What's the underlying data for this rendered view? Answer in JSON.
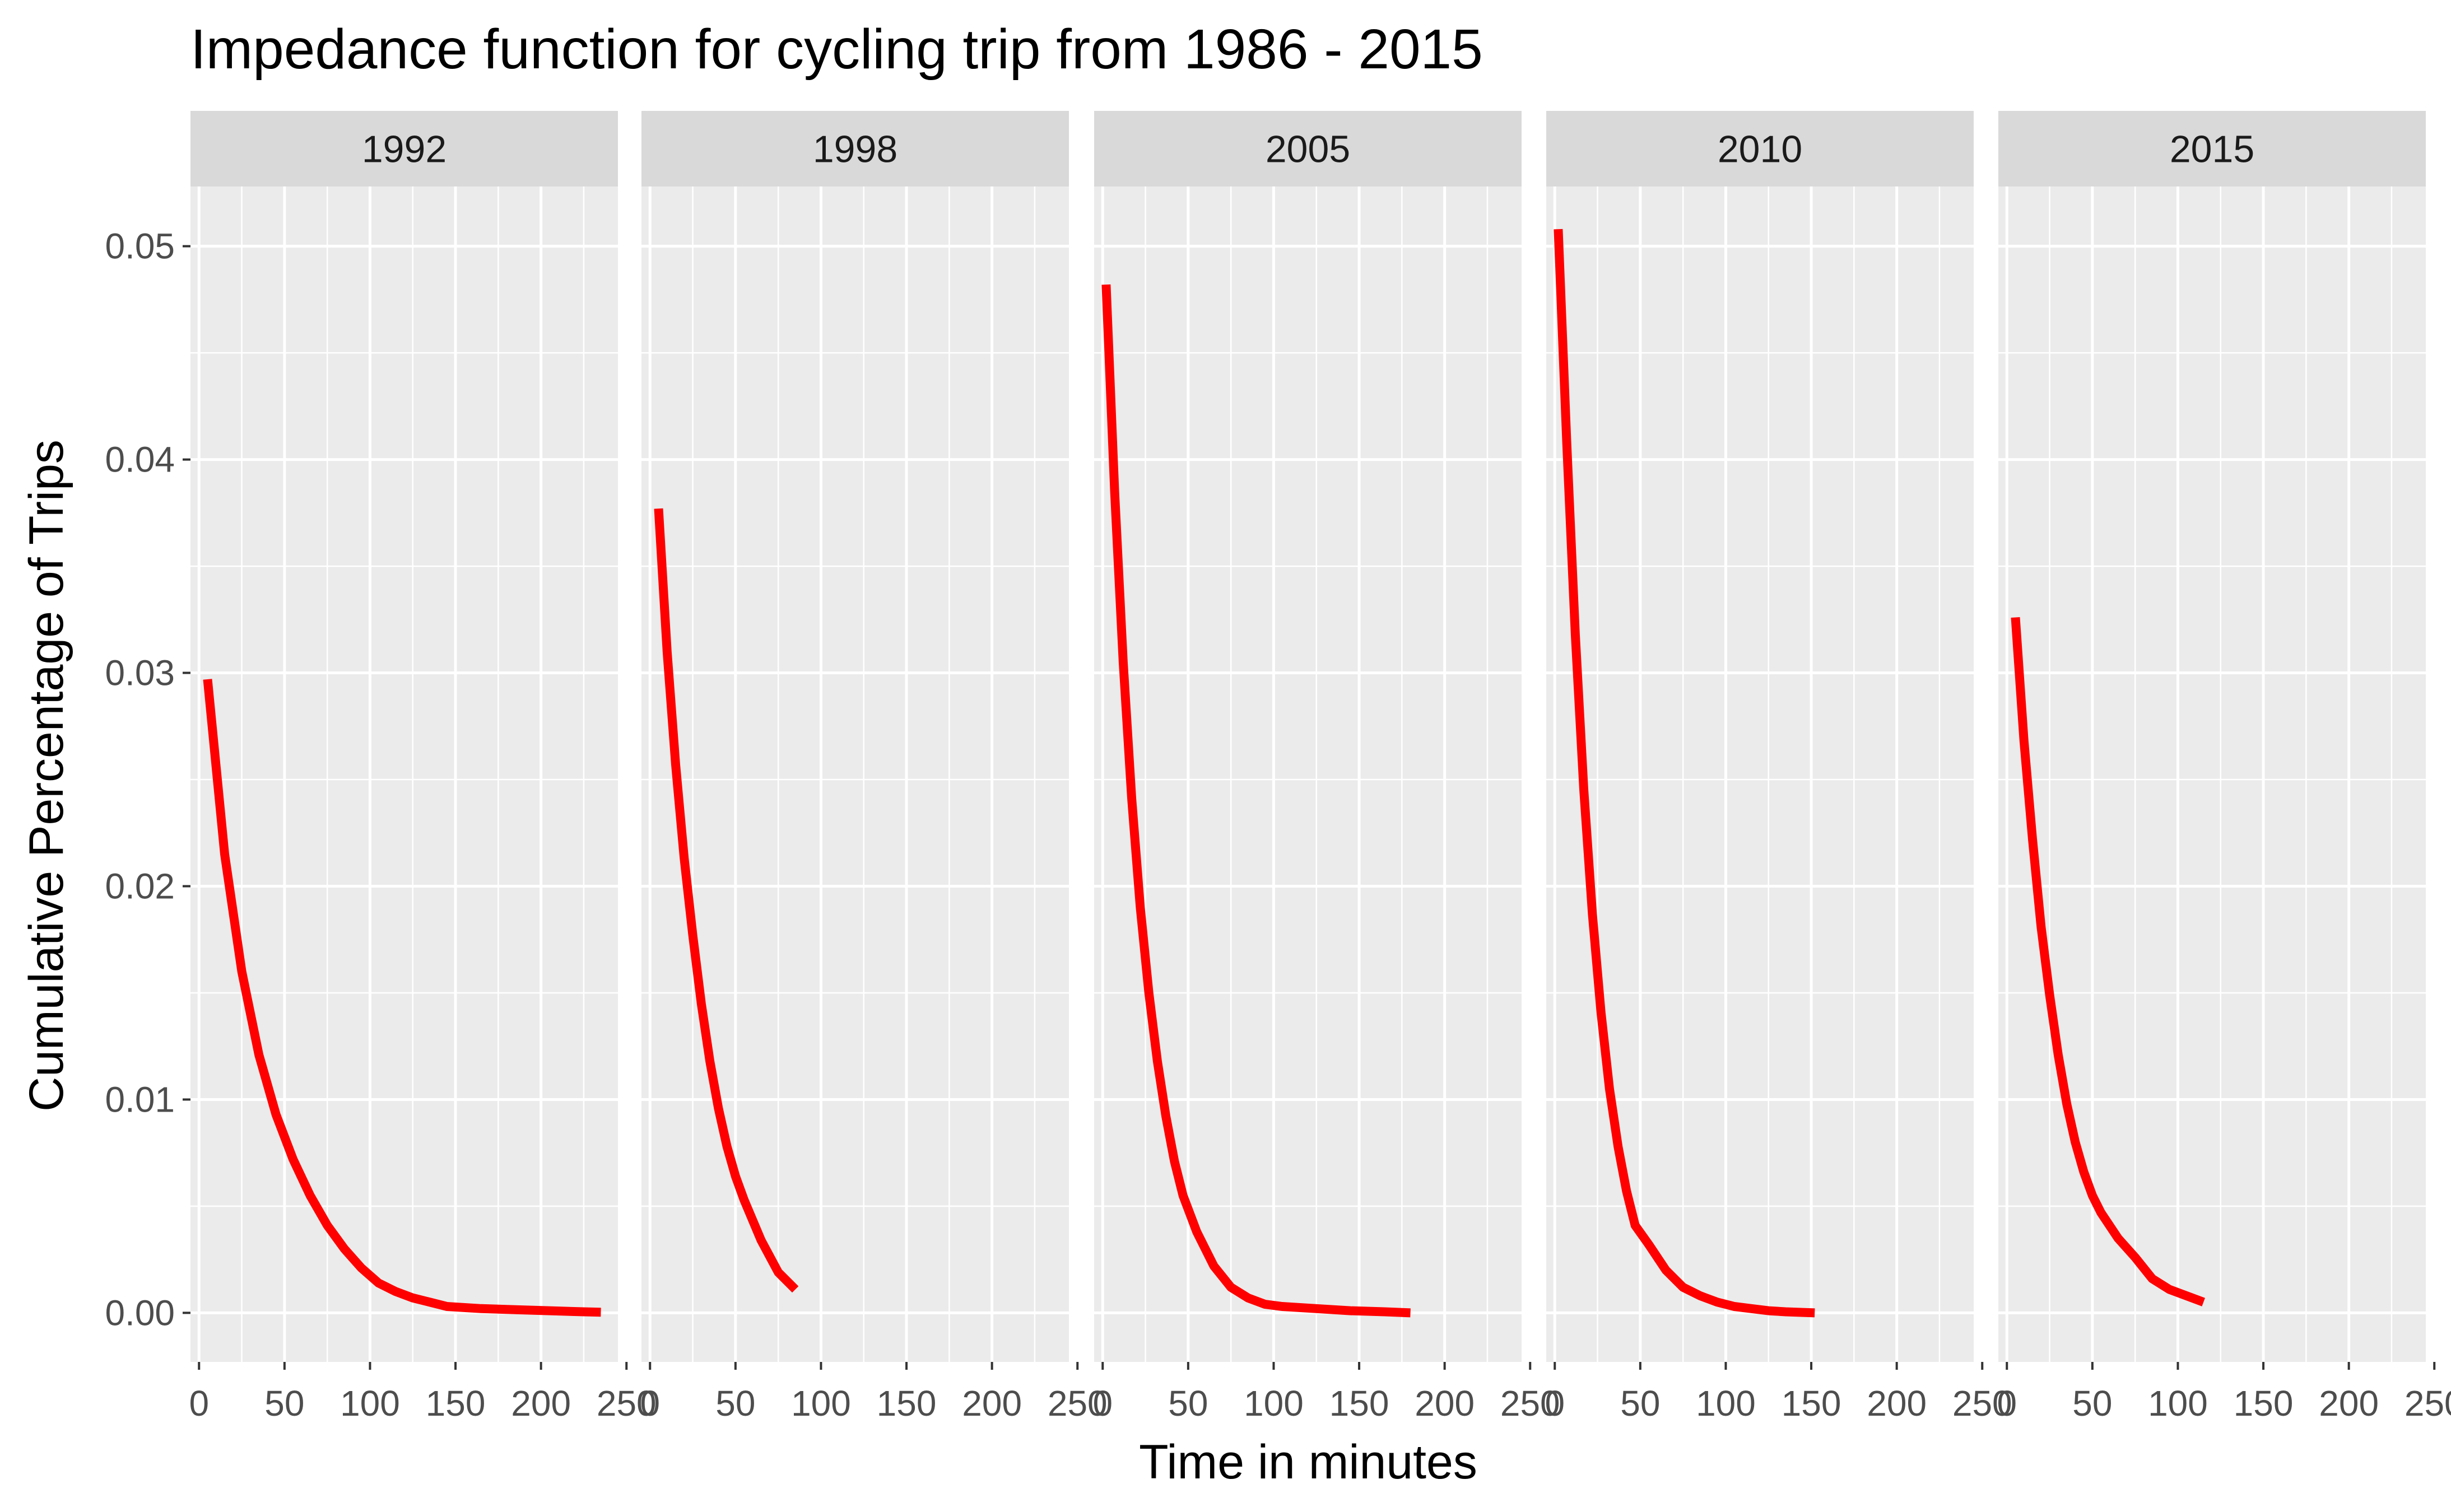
{
  "chart_data": {
    "type": "line",
    "title": "Impedance function for cycling trip from 1986 - 2015",
    "xlabel": "Time in minutes",
    "ylabel": "Cumulative Percentage of Trips",
    "xlim": [
      -5,
      245
    ],
    "ylim": [
      -0.0023,
      0.0528
    ],
    "x_ticks": [
      0,
      50,
      100,
      150,
      200,
      250
    ],
    "x_tick_labels": [
      "0",
      "50",
      "100",
      "150",
      "200",
      "250"
    ],
    "y_ticks": [
      0,
      0.01,
      0.02,
      0.03,
      0.04,
      0.05
    ],
    "y_tick_labels": [
      "0.00",
      "0.01",
      "0.02",
      "0.03",
      "0.04",
      "0.05"
    ],
    "grid": true,
    "line_color": "#ff0000",
    "panel_background": "#ebebeb",
    "strip_background": "#d9d9d9",
    "panels": [
      {
        "label": "1992",
        "x": [
          5,
          15,
          25,
          35,
          45,
          55,
          65,
          75,
          85,
          95,
          105,
          115,
          125,
          135,
          145,
          165,
          185,
          205,
          225,
          235
        ],
        "y": [
          0.0297,
          0.0215,
          0.016,
          0.0121,
          0.0093,
          0.0072,
          0.0055,
          0.0041,
          0.003,
          0.0021,
          0.0014,
          0.001,
          0.0007,
          0.0005,
          0.0003,
          0.0002,
          0.00015,
          0.0001,
          5e-05,
          3e-05
        ]
      },
      {
        "label": "1998",
        "x": [
          5,
          10,
          15,
          20,
          25,
          30,
          35,
          40,
          45,
          50,
          55,
          65,
          75,
          85
        ],
        "y": [
          0.0377,
          0.031,
          0.0257,
          0.0213,
          0.0177,
          0.0145,
          0.0118,
          0.0096,
          0.0078,
          0.0064,
          0.0053,
          0.0034,
          0.0019,
          0.0011
        ]
      },
      {
        "label": "2005",
        "x": [
          2,
          7,
          12,
          17,
          22,
          27,
          32,
          37,
          42,
          47,
          55,
          65,
          75,
          85,
          95,
          105,
          125,
          145,
          165,
          180
        ],
        "y": [
          0.0482,
          0.0385,
          0.0305,
          0.0241,
          0.019,
          0.015,
          0.0118,
          0.0092,
          0.0071,
          0.0055,
          0.0038,
          0.0022,
          0.0012,
          0.0007,
          0.0004,
          0.0003,
          0.0002,
          0.0001,
          5e-05,
          0.0
        ]
      },
      {
        "label": "2010",
        "x": [
          2,
          7,
          12,
          17,
          22,
          27,
          32,
          37,
          42,
          47,
          55,
          65,
          75,
          85,
          95,
          105,
          115,
          125,
          135,
          145,
          152
        ],
        "y": [
          0.0508,
          0.0408,
          0.0318,
          0.0245,
          0.0187,
          0.0141,
          0.0105,
          0.0078,
          0.0057,
          0.0041,
          0.0032,
          0.002,
          0.0012,
          0.0008,
          0.0005,
          0.0003,
          0.0002,
          0.0001,
          5e-05,
          2e-05,
          0.0
        ]
      },
      {
        "label": "2015",
        "x": [
          5,
          10,
          15,
          20,
          25,
          30,
          35,
          40,
          45,
          50,
          55,
          65,
          75,
          85,
          95,
          105,
          115
        ],
        "y": [
          0.0326,
          0.0268,
          0.0222,
          0.0181,
          0.0149,
          0.0121,
          0.0098,
          0.008,
          0.0066,
          0.0055,
          0.0047,
          0.0035,
          0.0026,
          0.0016,
          0.0011,
          0.0008,
          0.0005
        ]
      }
    ]
  }
}
